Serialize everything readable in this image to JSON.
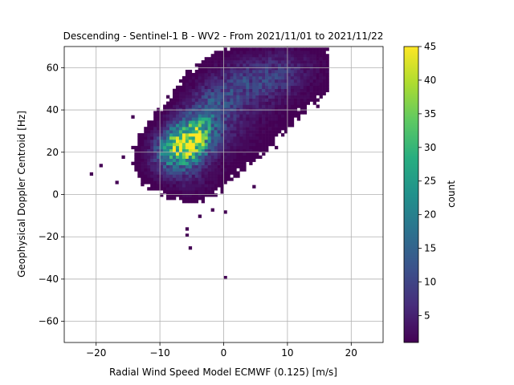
{
  "chart_data": {
    "type": "heatmap",
    "title": "Descending - Sentinel-1 B - WV2 - From 2021/11/01 to 2021/11/22",
    "xlabel": "Radial Wind Speed Model ECMWF (0.125) [m/s]",
    "ylabel": "Geophysical Doppler Centroid [Hz]",
    "xlim": [
      -25,
      25
    ],
    "ylim": [
      -70,
      70
    ],
    "x_ticks": [
      -20,
      -10,
      0,
      10,
      20
    ],
    "y_ticks": [
      -60,
      -40,
      -20,
      0,
      20,
      40,
      60
    ],
    "x_tick_labels": [
      "−20",
      "−10",
      "0",
      "10",
      "20"
    ],
    "y_tick_labels": [
      "−60",
      "−40",
      "−20",
      "0",
      "20",
      "40",
      "60"
    ],
    "grid": true,
    "bin_width_x": 0.5,
    "bin_width_y": 1.5,
    "colormap": "viridis",
    "colorbar": {
      "label": "count",
      "range": [
        1,
        45
      ],
      "ticks": [
        5,
        10,
        15,
        20,
        25,
        30,
        35,
        40,
        45
      ],
      "tick_labels": [
        "5",
        "10",
        "15",
        "20",
        "25",
        "30",
        "35",
        "40",
        "45"
      ]
    },
    "clusters": [
      {
        "x": -6,
        "y": 24,
        "sx": 2.6,
        "sy": 7,
        "peak": 45,
        "rho": 0.3
      },
      {
        "x": -2,
        "y": 40,
        "sx": 3,
        "sy": 9,
        "peak": 10,
        "rho": 0.4
      },
      {
        "x": 6,
        "y": 55,
        "sx": 5,
        "sy": 8,
        "peak": 9,
        "rho": 0.3
      },
      {
        "x": 0,
        "y": 30,
        "sx": 6,
        "sy": 13,
        "peak": 3,
        "rho": 0.5
      },
      {
        "x": -5,
        "y": 8,
        "sx": 2.5,
        "sy": 6,
        "peak": 3,
        "rho": 0
      }
    ],
    "outliers": [
      {
        "x": -21,
        "y": 9
      },
      {
        "x": -19.5,
        "y": 13
      },
      {
        "x": -17,
        "y": 5
      },
      {
        "x": -16,
        "y": 17
      },
      {
        "x": -13,
        "y": 4
      },
      {
        "x": -14.5,
        "y": 36
      },
      {
        "x": -6,
        "y": -17
      },
      {
        "x": -6,
        "y": -20
      },
      {
        "x": -5.5,
        "y": -26
      },
      {
        "x": -4,
        "y": -11
      },
      {
        "x": -2,
        "y": -8
      },
      {
        "x": 0,
        "y": -9
      },
      {
        "x": 0,
        "y": -40
      },
      {
        "x": 4.5,
        "y": 3
      },
      {
        "x": 14.5,
        "y": 41
      },
      {
        "x": 15.5,
        "y": 64
      }
    ]
  }
}
